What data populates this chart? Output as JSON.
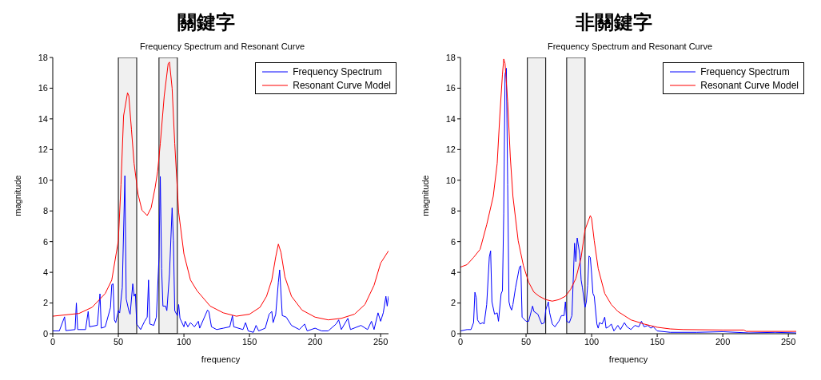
{
  "chart_data": [
    {
      "type": "line",
      "title": "關鍵字",
      "subtitle": "Frequency Spectrum and Resonant Curve",
      "xlabel": "frequency",
      "ylabel": "magnitude",
      "xlim": [
        0,
        256
      ],
      "xticks": [
        0,
        50,
        100,
        150,
        200,
        250
      ],
      "ylim": [
        0,
        18
      ],
      "yticks": [
        0,
        2,
        4,
        6,
        8,
        10,
        12,
        14,
        16,
        18
      ],
      "legend": "top right",
      "bands": [
        {
          "axis": "x",
          "from": 50,
          "to": 64,
          "color": "#000000"
        },
        {
          "axis": "x",
          "from": 81,
          "to": 95,
          "color": "#000000"
        }
      ],
      "series": [
        {
          "name": "Frequency Spectrum",
          "color": "#0000ff",
          "x": [
            0,
            5,
            9,
            10,
            17,
            18,
            19,
            25,
            27,
            28,
            34,
            36,
            37,
            40,
            44,
            45,
            46,
            47,
            48,
            50,
            51,
            53,
            55,
            56,
            58,
            59,
            61,
            62,
            63,
            64,
            67,
            70,
            72,
            73,
            74,
            77,
            79,
            81,
            82,
            83,
            84,
            86,
            87,
            89,
            91,
            92,
            93,
            95,
            96,
            97,
            100,
            101,
            103,
            105,
            108,
            111,
            112,
            118,
            119,
            121,
            125,
            130,
            135,
            137,
            138,
            145,
            147,
            149,
            153,
            155,
            157,
            162,
            165,
            167,
            168,
            170,
            172,
            173,
            175,
            178,
            182,
            188,
            192,
            194,
            200,
            205,
            210,
            216,
            218,
            220,
            225,
            227,
            235,
            240,
            243,
            245,
            248,
            250,
            252,
            254,
            255,
            256
          ],
          "values": [
            0.18,
            0.18,
            1.1,
            0.2,
            0.27,
            2.0,
            0.27,
            0.27,
            1.45,
            0.45,
            0.55,
            2.6,
            0.36,
            0.45,
            1.7,
            3.2,
            3.25,
            0.9,
            0.72,
            1.5,
            1.35,
            3.0,
            10.3,
            2.26,
            1.5,
            1.27,
            3.25,
            2.44,
            2.6,
            0.63,
            0.27,
            0.81,
            1.08,
            3.5,
            0.63,
            0.54,
            1.08,
            5.0,
            10.25,
            4.25,
            1.8,
            1.8,
            1.5,
            3.9,
            8.2,
            6.06,
            1.5,
            1.18,
            1.9,
            1.0,
            0.45,
            0.81,
            0.45,
            0.72,
            0.45,
            0.81,
            0.36,
            1.54,
            1.45,
            0.45,
            0.27,
            0.36,
            0.45,
            1.18,
            0.45,
            0.27,
            0.72,
            0.18,
            0.09,
            0.54,
            0.18,
            0.36,
            1.27,
            1.45,
            0.72,
            1.27,
            3.35,
            4.16,
            1.18,
            1.08,
            0.54,
            0.27,
            0.63,
            0.18,
            0.36,
            0.18,
            0.18,
            0.63,
            0.9,
            0.27,
            1.0,
            0.27,
            0.54,
            0.27,
            0.81,
            0.27,
            1.36,
            0.81,
            1.36,
            2.44,
            1.8,
            2.44
          ]
        },
        {
          "name": "Resonant Curve Model",
          "color": "#ff0000",
          "x": [
            0,
            20,
            30,
            40,
            45,
            50,
            52,
            54,
            57,
            58,
            60,
            62,
            65,
            68,
            72,
            75,
            78,
            80,
            82,
            85,
            88,
            89,
            91,
            93,
            96,
            100,
            105,
            110,
            120,
            130,
            140,
            150,
            158,
            163,
            167,
            170,
            172,
            174,
            177,
            182,
            190,
            200,
            210,
            220,
            230,
            238,
            245,
            250,
            256
          ],
          "values": [
            1.14,
            1.32,
            1.72,
            2.62,
            3.5,
            6.06,
            9.7,
            14.2,
            15.7,
            15.5,
            13.3,
            11.1,
            9.1,
            8.05,
            7.7,
            8.2,
            9.5,
            10.6,
            12.4,
            15.5,
            17.6,
            17.7,
            16.0,
            12.4,
            7.9,
            5.2,
            3.5,
            2.8,
            1.8,
            1.36,
            1.14,
            1.27,
            1.72,
            2.44,
            3.5,
            5.0,
            5.84,
            5.3,
            3.7,
            2.44,
            1.54,
            1.08,
            0.9,
            1.0,
            1.27,
            1.9,
            3.16,
            4.6,
            5.4
          ]
        }
      ]
    },
    {
      "type": "line",
      "title": "非關鍵字",
      "subtitle": "Frequency Spectrum and Resonant Curve",
      "xlabel": "frequency",
      "ylabel": "magnitude",
      "xlim": [
        0,
        256
      ],
      "xticks": [
        0,
        50,
        100,
        150,
        200,
        250
      ],
      "ylim": [
        0,
        18
      ],
      "yticks": [
        0,
        2,
        4,
        6,
        8,
        10,
        12,
        14,
        16,
        18
      ],
      "legend": "top right",
      "bands": [
        {
          "axis": "x",
          "from": 51,
          "to": 65,
          "color": "#000000"
        },
        {
          "axis": "x",
          "from": 81,
          "to": 95,
          "color": "#000000"
        }
      ],
      "series": [
        {
          "name": "Frequency Spectrum",
          "color": "#0000ff",
          "x": [
            0,
            5,
            8,
            10,
            11,
            12,
            13,
            15,
            17,
            18,
            20,
            22,
            23,
            24,
            26,
            28,
            29,
            31,
            32,
            33,
            34,
            35,
            36,
            37,
            38,
            39,
            40,
            42,
            44,
            45,
            46,
            47,
            50,
            52,
            55,
            56,
            59,
            62,
            64,
            65,
            67,
            68,
            70,
            72,
            75,
            77,
            79,
            80,
            81,
            83,
            85,
            87,
            88,
            89,
            91,
            92,
            93,
            95,
            96,
            97,
            98,
            99,
            100,
            101,
            102,
            104,
            105,
            106,
            108,
            110,
            111,
            113,
            115,
            117,
            120,
            122,
            125,
            127,
            130,
            133,
            136,
            138,
            140,
            143,
            145,
            147,
            150,
            160,
            180,
            200,
            220,
            240,
            256
          ],
          "values": [
            0.18,
            0.27,
            0.27,
            0.72,
            2.7,
            2.35,
            0.9,
            0.63,
            0.72,
            0.63,
            1.9,
            5.0,
            5.4,
            2.08,
            1.27,
            1.36,
            0.81,
            2.6,
            2.8,
            7.85,
            16.9,
            17.3,
            9.7,
            2.08,
            1.72,
            1.54,
            1.9,
            3.0,
            3.9,
            4.34,
            4.43,
            1.08,
            0.81,
            0.81,
            1.8,
            1.45,
            1.27,
            0.63,
            0.72,
            1.54,
            2.08,
            1.36,
            0.63,
            0.45,
            0.81,
            1.18,
            1.18,
            2.08,
            0.81,
            0.72,
            1.18,
            5.9,
            4.7,
            6.24,
            5.15,
            3.5,
            3.0,
            1.72,
            2.08,
            3.16,
            5.06,
            4.97,
            3.9,
            2.62,
            2.44,
            0.63,
            0.36,
            0.72,
            0.63,
            1.08,
            0.36,
            0.45,
            0.63,
            0.18,
            0.54,
            0.27,
            0.72,
            0.45,
            0.27,
            0.54,
            0.45,
            0.81,
            0.45,
            0.54,
            0.36,
            0.45,
            0.18,
            0.09,
            0.09,
            0.13,
            0.05,
            0.09,
            0.05
          ]
        },
        {
          "name": "Resonant Curve Model",
          "color": "#ff0000",
          "x": [
            0,
            5,
            10,
            15,
            20,
            25,
            28,
            30,
            32,
            33,
            34,
            36,
            38,
            40,
            44,
            48,
            52,
            56,
            60,
            65,
            70,
            75,
            80,
            84,
            88,
            92,
            95,
            99,
            100,
            102,
            105,
            110,
            115,
            120,
            130,
            140,
            150,
            160,
            170,
            200,
            216,
            218,
            256
          ],
          "values": [
            4.34,
            4.5,
            4.97,
            5.5,
            7.1,
            8.95,
            11.1,
            14.2,
            16.9,
            17.9,
            17.6,
            15.1,
            11.5,
            8.95,
            6.06,
            4.43,
            3.35,
            2.71,
            2.44,
            2.22,
            2.12,
            2.22,
            2.44,
            2.89,
            3.6,
            4.97,
            6.78,
            7.7,
            7.5,
            6.06,
            4.25,
            2.62,
            1.9,
            1.45,
            0.9,
            0.63,
            0.42,
            0.31,
            0.27,
            0.24,
            0.24,
            0.15,
            0.15
          ]
        }
      ]
    }
  ]
}
